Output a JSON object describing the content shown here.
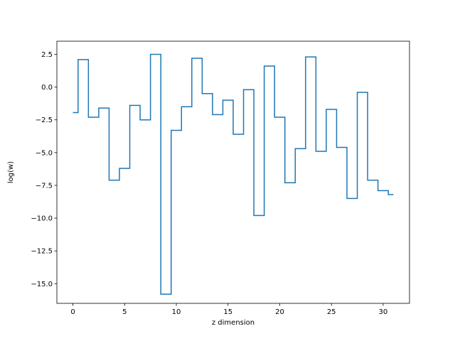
{
  "chart_data": {
    "type": "line",
    "drawstyle": "steps-mid",
    "xlabel": "z dimension",
    "ylabel": "log(w)",
    "xlim": [
      -1.55,
      32.55
    ],
    "ylim": [
      -16.5,
      3.5
    ],
    "xticks": [
      0,
      5,
      10,
      15,
      20,
      25,
      30
    ],
    "xtick_labels": [
      "0",
      "5",
      "10",
      "15",
      "20",
      "25",
      "30"
    ],
    "yticks": [
      2.5,
      0.0,
      -2.5,
      -5.0,
      -7.5,
      -10.0,
      -12.5,
      -15.0
    ],
    "ytick_labels": [
      "2.5",
      "0.0",
      "−2.5",
      "−5.0",
      "−7.5",
      "−10.0",
      "−12.5",
      "−15.0"
    ],
    "grid": false,
    "series": [
      {
        "color": "#1f77b4",
        "x": [
          0,
          1,
          2,
          3,
          4,
          5,
          6,
          7,
          8,
          9,
          10,
          11,
          12,
          13,
          14,
          15,
          16,
          17,
          18,
          19,
          20,
          21,
          22,
          23,
          24,
          25,
          26,
          27,
          28,
          29,
          30,
          31
        ],
        "values": [
          -1.95,
          2.1,
          -2.3,
          -1.6,
          -7.1,
          -6.2,
          -1.4,
          -2.5,
          2.5,
          -15.8,
          -3.3,
          -1.5,
          2.2,
          -0.5,
          -2.1,
          -1.0,
          -3.6,
          -0.2,
          -9.8,
          1.6,
          -2.3,
          -7.3,
          -4.7,
          2.3,
          -4.9,
          -1.7,
          -4.6,
          -8.5,
          -0.4,
          -7.1,
          -7.9,
          -8.2
        ]
      }
    ]
  }
}
